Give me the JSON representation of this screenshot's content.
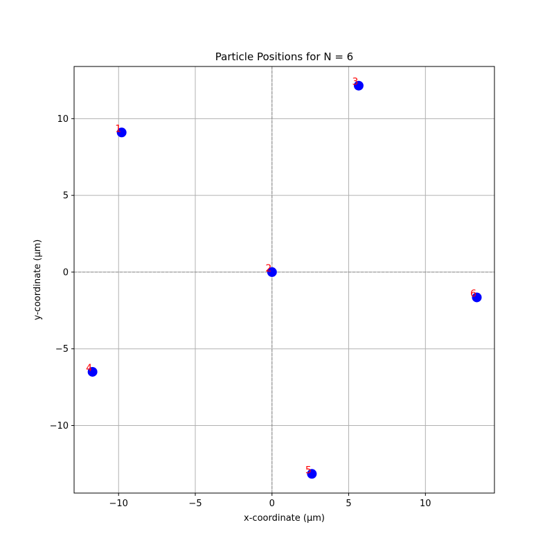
{
  "chart_data": {
    "type": "scatter",
    "title": "Particle Positions for N = 6",
    "xlabel": "x-coordinate (μm)",
    "ylabel": "y-coordinate (μm)",
    "xlim": [
      -12.9,
      14.5
    ],
    "ylim": [
      -14.4,
      13.4
    ],
    "xticks": [
      -10,
      -5,
      0,
      5,
      10
    ],
    "yticks": [
      -10,
      -5,
      0,
      5,
      10
    ],
    "grid": true,
    "zero_lines": true,
    "point_color": "#0000ff",
    "label_color": "#ff0000",
    "points": [
      {
        "label": "1",
        "x": -9.8,
        "y": 9.1
      },
      {
        "label": "2",
        "x": 0.0,
        "y": 0.0
      },
      {
        "label": "3",
        "x": 5.65,
        "y": 12.15
      },
      {
        "label": "4",
        "x": -11.7,
        "y": -6.5
      },
      {
        "label": "5",
        "x": 2.6,
        "y": -13.15
      },
      {
        "label": "6",
        "x": 13.35,
        "y": -1.65
      }
    ]
  }
}
